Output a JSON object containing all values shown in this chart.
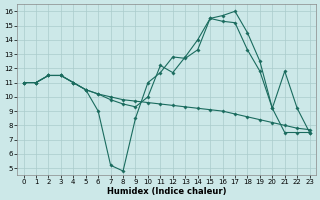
{
  "xlabel": "Humidex (Indice chaleur)",
  "bg_color": "#cce8e8",
  "grid_color": "#aacccc",
  "line_color": "#1a6b5e",
  "xlim_min": -0.5,
  "xlim_max": 23.5,
  "ylim_min": 4.5,
  "ylim_max": 16.5,
  "xticks": [
    0,
    1,
    2,
    3,
    4,
    5,
    6,
    7,
    8,
    9,
    10,
    11,
    12,
    13,
    14,
    15,
    16,
    17,
    18,
    19,
    20,
    21,
    22,
    23
  ],
  "yticks": [
    5,
    6,
    7,
    8,
    9,
    10,
    11,
    12,
    13,
    14,
    15,
    16
  ],
  "line1_x": [
    0,
    1,
    2,
    3,
    4,
    5,
    6,
    7,
    8,
    9,
    10,
    11,
    12,
    13,
    14,
    15,
    16,
    17,
    18,
    19,
    20,
    21,
    22,
    23
  ],
  "line1_y": [
    11,
    11,
    11.5,
    11.5,
    11,
    10.5,
    9.0,
    5.2,
    4.8,
    8.5,
    11.0,
    11.7,
    12.8,
    12.7,
    13.3,
    15.5,
    15.3,
    15.2,
    13.3,
    11.8,
    9.2,
    11.8,
    9.2,
    7.5
  ],
  "line2_x": [
    0,
    1,
    2,
    3,
    4,
    5,
    6,
    7,
    8,
    9,
    10,
    11,
    12,
    13,
    14,
    15,
    16,
    17,
    18,
    19,
    20,
    21,
    22,
    23
  ],
  "line2_y": [
    11,
    11,
    11.5,
    11.5,
    11,
    10.5,
    10.2,
    10.0,
    9.8,
    9.7,
    9.6,
    9.5,
    9.4,
    9.3,
    9.2,
    9.1,
    9.0,
    8.8,
    8.6,
    8.4,
    8.2,
    8.0,
    7.8,
    7.7
  ],
  "line3_x": [
    0,
    1,
    2,
    3,
    4,
    5,
    6,
    7,
    8,
    9,
    10,
    11,
    12,
    13,
    14,
    15,
    16,
    17,
    18,
    19,
    20,
    21,
    22,
    23
  ],
  "line3_y": [
    11,
    11,
    11.5,
    11.5,
    11,
    10.5,
    10.2,
    9.8,
    9.5,
    9.3,
    10.0,
    12.2,
    11.7,
    12.8,
    14.0,
    15.5,
    15.7,
    16.0,
    14.5,
    12.5,
    9.2,
    7.5,
    7.5,
    7.5
  ]
}
